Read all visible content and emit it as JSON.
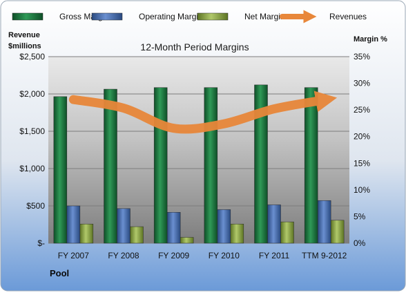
{
  "chart_data": {
    "type": "bar",
    "title": "12-Month Period Margins",
    "categories": [
      "FY 2007",
      "FY 2008",
      "FY 2009",
      "FY 2010",
      "FY 2011",
      "TTM 9-2012"
    ],
    "series": [
      {
        "name": "Gross Margin",
        "kind": "bar",
        "axis": "right",
        "color": "#1e7a43",
        "values": [
          27.5,
          28.9,
          29.2,
          29.2,
          29.7,
          29.2
        ]
      },
      {
        "name": "Operating Margin",
        "kind": "bar",
        "axis": "right",
        "color": "#4a6fb0",
        "values": [
          7.0,
          6.5,
          5.8,
          6.3,
          7.2,
          8.0
        ]
      },
      {
        "name": "Net Margin",
        "kind": "bar",
        "axis": "right",
        "color": "#8fa84a",
        "values": [
          3.6,
          3.1,
          1.1,
          3.6,
          4.0,
          4.3
        ]
      },
      {
        "name": "Revenues",
        "kind": "line",
        "axis": "left",
        "color": "#e8873a",
        "values": [
          1925,
          1810,
          1540,
          1600,
          1800,
          1920
        ]
      }
    ],
    "left_axis": {
      "label_line1": "Revenue",
      "label_line2": "$millions",
      "range": [
        0,
        2500
      ],
      "ticks": [
        0,
        500,
        1000,
        1500,
        2000,
        2500
      ],
      "tick_labels": [
        "$-",
        "$500",
        "$1,000",
        "$1,500",
        "$2,000",
        "$2,500"
      ]
    },
    "right_axis": {
      "label": "Margin %",
      "range": [
        0,
        35
      ],
      "ticks": [
        0,
        5,
        10,
        15,
        20,
        25,
        30,
        35
      ],
      "tick_labels": [
        "0%",
        "5%",
        "10%",
        "15%",
        "20%",
        "25%",
        "30%",
        "35%"
      ]
    },
    "grid": true,
    "legend_position": "top",
    "footer_label": "Pool"
  }
}
